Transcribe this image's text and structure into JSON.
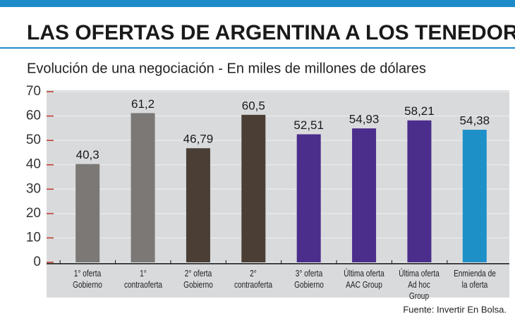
{
  "chart_data": {
    "type": "bar",
    "title": "LAS OFERTAS DE ARGENTINA A LOS TENEDORES",
    "subtitle": "Evolución de una negociación - En miles de millones de dólares",
    "source": "Fuente:  Invertir En Bolsa.",
    "categories": [
      "1° oferta\nGobierno",
      "1°\ncontraoferta",
      "2° oferta\nGobierno",
      "2°\ncontraoferta",
      "3° oferta\nGobierno",
      "Última oferta\nAAC Group",
      "Última oferta\nAd hoc Group",
      "Enmienda de\nla oferta"
    ],
    "values": [
      40.3,
      61.2,
      46.79,
      60.5,
      52.51,
      54.93,
      58.21,
      54.38
    ],
    "value_labels": [
      "40,3",
      "61,2",
      "46,79",
      "60,5",
      "52,51",
      "54,93",
      "58,21",
      "54,38"
    ],
    "colors": [
      "#7b7875",
      "#7b7875",
      "#4a3e35",
      "#4a3e35",
      "#4b2d8c",
      "#4b2d8c",
      "#4b2d8c",
      "#1e90c8"
    ],
    "ylim": [
      0,
      70
    ],
    "yticks": [
      0,
      10,
      20,
      30,
      40,
      50,
      60,
      70
    ],
    "grid": true
  }
}
